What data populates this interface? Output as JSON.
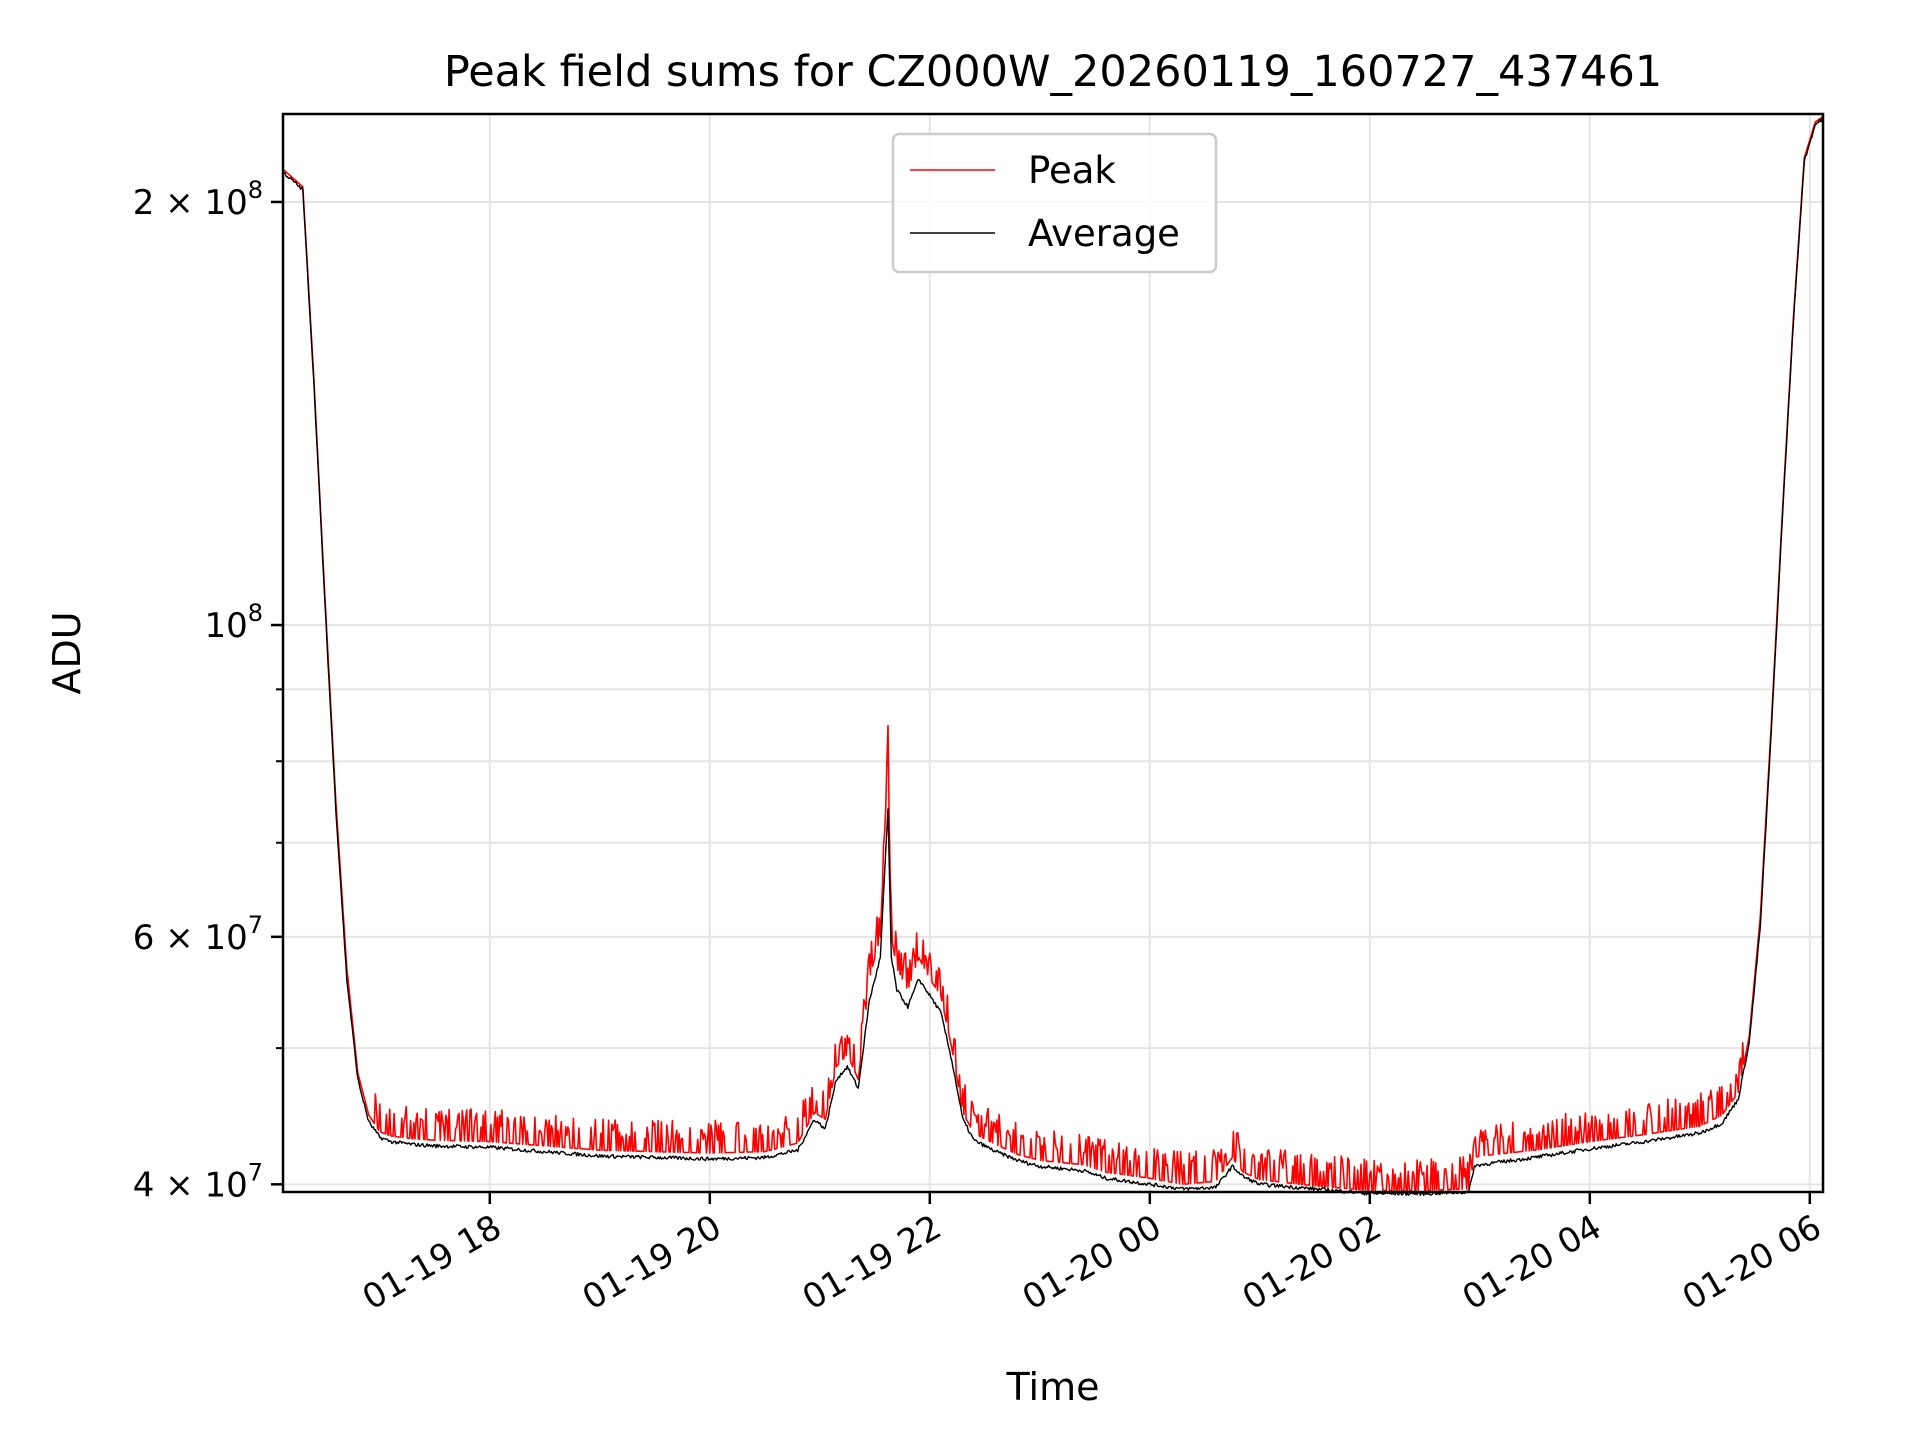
{
  "chart_data": {
    "type": "line",
    "title": "Peak field sums for CZ000W_20260119_160727_437461",
    "xlabel": "Time",
    "ylabel": "ADU",
    "yscale": "log",
    "xlim_hours": [
      16.12,
      30.12
    ],
    "ylim": [
      39500000,
      231000000
    ],
    "grid": true,
    "legend_position": "upper center",
    "x_ticks": [
      {
        "hour": 18,
        "label": "01-19 18"
      },
      {
        "hour": 20,
        "label": "01-19 20"
      },
      {
        "hour": 22,
        "label": "01-19 22"
      },
      {
        "hour": 24,
        "label": "01-20 00"
      },
      {
        "hour": 26,
        "label": "01-20 02"
      },
      {
        "hour": 28,
        "label": "01-20 04"
      },
      {
        "hour": 30,
        "label": "01-20 06"
      }
    ],
    "y_major_ticks": [
      {
        "value": 40000000,
        "mantissa": "4",
        "exponent": "7"
      },
      {
        "value": 60000000,
        "mantissa": "6",
        "exponent": "7"
      },
      {
        "value": 100000000,
        "mantissa": "",
        "exponent": "8"
      },
      {
        "value": 200000000,
        "mantissa": "2",
        "exponent": "8"
      }
    ],
    "y_minor_ticks": [
      50000000,
      70000000,
      80000000,
      90000000
    ],
    "series": [
      {
        "name": "Peak",
        "color": "#ff0000",
        "spikes": true,
        "hours": [
          16.12,
          16.3,
          16.4,
          16.5,
          16.6,
          16.7,
          16.8,
          16.9,
          17.0,
          17.1,
          17.2,
          17.3,
          17.5,
          18.0,
          18.5,
          19.0,
          19.5,
          20.0,
          20.5,
          20.8,
          20.95,
          21.05,
          21.15,
          21.25,
          21.35,
          21.45,
          21.55,
          21.62,
          21.65,
          21.7,
          21.8,
          21.9,
          22.0,
          22.1,
          22.2,
          22.3,
          22.4,
          22.6,
          22.8,
          23.0,
          23.4,
          23.6,
          24.0,
          24.3,
          24.6,
          24.75,
          24.85,
          25.0,
          25.5,
          26.0,
          26.5,
          26.9,
          26.95,
          27.0,
          27.5,
          28.0,
          28.5,
          29.0,
          29.2,
          29.35,
          29.45,
          29.55,
          29.65,
          29.75,
          29.85,
          29.95,
          30.05,
          30.12
        ],
        "values": [
          211000000,
          205000000,
          150000000,
          105000000,
          75000000,
          57000000,
          48000000,
          44800000,
          43600000,
          43300000,
          43200000,
          43100000,
          43000000,
          42900000,
          42600000,
          42300000,
          42200000,
          42100000,
          42200000,
          42800000,
          45000000,
          44500000,
          48500000,
          49500000,
          47500000,
          56000000,
          60000000,
          81000000,
          60000000,
          57000000,
          55000000,
          58000000,
          56000000,
          54500000,
          50000000,
          45000000,
          43500000,
          42700000,
          42000000,
          41600000,
          41300000,
          40800000,
          40400000,
          40000000,
          40200000,
          41800000,
          40800000,
          40300000,
          39900000,
          39600000,
          39600000,
          39700000,
          41800000,
          41900000,
          42300000,
          42900000,
          43400000,
          44000000,
          44800000,
          46500000,
          51000000,
          62000000,
          85000000,
          120000000,
          165000000,
          215000000,
          228000000,
          230000000
        ]
      },
      {
        "name": "Average",
        "color": "#000000",
        "spikes": false,
        "hours": [
          16.12,
          16.3,
          16.4,
          16.5,
          16.6,
          16.7,
          16.8,
          16.9,
          17.0,
          17.1,
          17.2,
          17.3,
          17.5,
          18.0,
          18.5,
          19.0,
          19.5,
          20.0,
          20.5,
          20.8,
          20.95,
          21.05,
          21.15,
          21.25,
          21.35,
          21.45,
          21.55,
          21.62,
          21.65,
          21.7,
          21.8,
          21.9,
          22.0,
          22.1,
          22.2,
          22.3,
          22.4,
          22.6,
          22.8,
          23.0,
          23.4,
          23.6,
          24.0,
          24.3,
          24.6,
          24.75,
          24.85,
          25.0,
          25.5,
          26.0,
          26.5,
          26.9,
          26.95,
          27.0,
          27.5,
          28.0,
          28.5,
          29.0,
          29.2,
          29.35,
          29.45,
          29.55,
          29.65,
          29.75,
          29.85,
          29.95,
          30.05,
          30.12
        ],
        "values": [
          210000000,
          204000000,
          149000000,
          104000000,
          74000000,
          56000000,
          47500000,
          44300000,
          43200000,
          42900000,
          42800000,
          42700000,
          42600000,
          42500000,
          42200000,
          41900000,
          41800000,
          41700000,
          41800000,
          42300000,
          44500000,
          43800000,
          47500000,
          48500000,
          46800000,
          54000000,
          58000000,
          74000000,
          58000000,
          55000000,
          53500000,
          56000000,
          54500000,
          53000000,
          49000000,
          44500000,
          43000000,
          42200000,
          41600000,
          41200000,
          40900000,
          40400000,
          40000000,
          39700000,
          39800000,
          41200000,
          40500000,
          40000000,
          39700000,
          39400000,
          39400000,
          39500000,
          41200000,
          41300000,
          41800000,
          42400000,
          42900000,
          43500000,
          44200000,
          46000000,
          50500000,
          61000000,
          84000000,
          119000000,
          164000000,
          214000000,
          227000000,
          229500000
        ]
      }
    ]
  }
}
